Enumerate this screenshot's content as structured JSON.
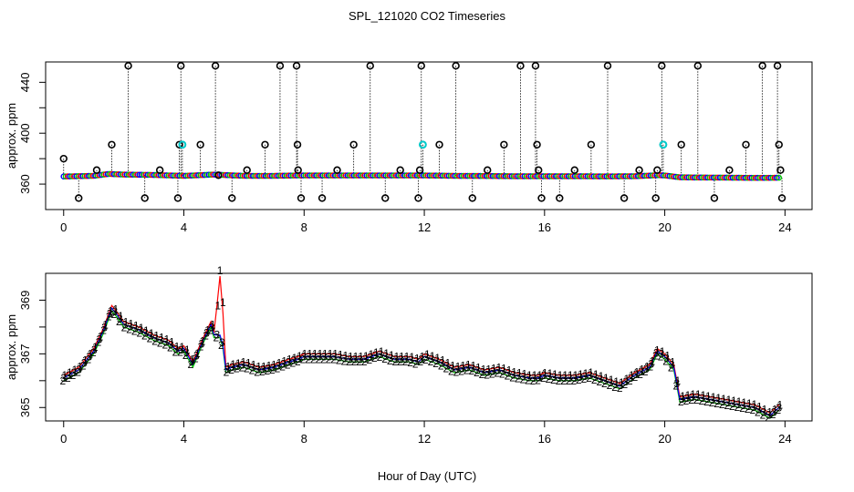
{
  "chart_data": {
    "title": "SPL_121020  CO2 Timeseries",
    "type": "scatter",
    "panels": [
      {
        "name": "top",
        "ylabel": "approx. ppm",
        "xlim": [
          -0.6,
          24.9
        ],
        "ylim": [
          340,
          456
        ],
        "yticks": [
          360,
          400,
          440
        ],
        "xticks": [
          0,
          4,
          8,
          12,
          16,
          20,
          24
        ],
        "xticklabels": [
          "0",
          "4",
          "8",
          "12",
          "16",
          "20",
          "24"
        ],
        "yticklabels": [
          "360",
          "400",
          "440"
        ],
        "baseline_series": [
          {
            "name": "3",
            "color": "#0000ff"
          },
          {
            "name": "2",
            "color": "#00cc00"
          },
          {
            "name": "1",
            "color": "#ff0000"
          }
        ],
        "highlight_color": "#00cccc",
        "outliers": [
          {
            "x": 0.0,
            "y": 380
          },
          {
            "x": 0.5,
            "y": 349
          },
          {
            "x": 1.1,
            "y": 371
          },
          {
            "x": 1.6,
            "y": 391
          },
          {
            "x": 2.15,
            "y": 453
          },
          {
            "x": 2.7,
            "y": 349
          },
          {
            "x": 3.2,
            "y": 371
          },
          {
            "x": 3.8,
            "y": 349
          },
          {
            "x": 3.85,
            "y": 391
          },
          {
            "x": 3.9,
            "y": 453
          },
          {
            "x": 3.95,
            "y": 391
          },
          {
            "x": 4.55,
            "y": 391
          },
          {
            "x": 5.05,
            "y": 453
          },
          {
            "x": 5.15,
            "y": 367
          },
          {
            "x": 5.6,
            "y": 349
          },
          {
            "x": 6.1,
            "y": 371
          },
          {
            "x": 6.7,
            "y": 391
          },
          {
            "x": 7.2,
            "y": 453
          },
          {
            "x": 7.75,
            "y": 453
          },
          {
            "x": 7.78,
            "y": 391
          },
          {
            "x": 7.8,
            "y": 371
          },
          {
            "x": 7.9,
            "y": 349
          },
          {
            "x": 8.6,
            "y": 349
          },
          {
            "x": 9.1,
            "y": 371
          },
          {
            "x": 9.65,
            "y": 391
          },
          {
            "x": 10.2,
            "y": 453
          },
          {
            "x": 10.7,
            "y": 349
          },
          {
            "x": 11.2,
            "y": 371
          },
          {
            "x": 11.8,
            "y": 349
          },
          {
            "x": 11.85,
            "y": 371
          },
          {
            "x": 11.9,
            "y": 453
          },
          {
            "x": 11.95,
            "y": 391
          },
          {
            "x": 12.5,
            "y": 391
          },
          {
            "x": 13.05,
            "y": 453
          },
          {
            "x": 13.6,
            "y": 349
          },
          {
            "x": 14.1,
            "y": 371
          },
          {
            "x": 14.65,
            "y": 391
          },
          {
            "x": 15.2,
            "y": 453
          },
          {
            "x": 15.7,
            "y": 453
          },
          {
            "x": 15.75,
            "y": 391
          },
          {
            "x": 15.8,
            "y": 371
          },
          {
            "x": 15.9,
            "y": 349
          },
          {
            "x": 16.5,
            "y": 349
          },
          {
            "x": 17.0,
            "y": 371
          },
          {
            "x": 17.55,
            "y": 391
          },
          {
            "x": 18.1,
            "y": 453
          },
          {
            "x": 18.65,
            "y": 349
          },
          {
            "x": 19.15,
            "y": 371
          },
          {
            "x": 19.7,
            "y": 349
          },
          {
            "x": 19.75,
            "y": 371
          },
          {
            "x": 19.9,
            "y": 453
          },
          {
            "x": 19.95,
            "y": 391
          },
          {
            "x": 20.55,
            "y": 391
          },
          {
            "x": 21.1,
            "y": 453
          },
          {
            "x": 21.65,
            "y": 349
          },
          {
            "x": 22.15,
            "y": 371
          },
          {
            "x": 22.7,
            "y": 391
          },
          {
            "x": 23.25,
            "y": 453
          },
          {
            "x": 23.75,
            "y": 453
          },
          {
            "x": 23.8,
            "y": 391
          },
          {
            "x": 23.85,
            "y": 371
          },
          {
            "x": 23.9,
            "y": 349
          }
        ],
        "highlights": [
          {
            "x": 3.95,
            "y": 391
          },
          {
            "x": 11.95,
            "y": 391
          },
          {
            "x": 19.95,
            "y": 391
          }
        ]
      },
      {
        "name": "bottom",
        "ylabel": "approx. ppm",
        "xlabel": "Hour of Day (UTC)",
        "xlim": [
          -0.6,
          24.9
        ],
        "ylim": [
          364.5,
          370.0
        ],
        "yticks": [
          365,
          367,
          369
        ],
        "xticks": [
          0,
          4,
          8,
          12,
          16,
          20,
          24
        ],
        "xticklabels": [
          "0",
          "4",
          "8",
          "12",
          "16",
          "20",
          "24"
        ],
        "yticklabels": [
          "365",
          "367",
          "369"
        ],
        "series": [
          {
            "name": "1",
            "label": "1",
            "color": "#ff0000",
            "offset": 0.1,
            "x": [
              0.0,
              0.5,
              1.0,
              1.3,
              1.6,
              1.75,
              2.0,
              2.5,
              3.0,
              3.5,
              3.8,
              4.0,
              4.3,
              4.6,
              4.9,
              5.0,
              5.1,
              5.2,
              5.3,
              5.4,
              5.6,
              6.0,
              6.5,
              7.0,
              7.5,
              7.8,
              8.0,
              8.5,
              9.0,
              9.5,
              10.0,
              10.5,
              11.0,
              11.5,
              11.8,
              12.0,
              12.5,
              13.0,
              13.5,
              14.0,
              14.5,
              15.0,
              15.5,
              15.8,
              16.0,
              16.5,
              17.0,
              17.5,
              18.0,
              18.5,
              19.0,
              19.5,
              19.75,
              20.0,
              20.3,
              20.5,
              21.0,
              21.5,
              22.0,
              22.5,
              23.0,
              23.5,
              23.8
            ],
            "y": [
              366.2,
              366.5,
              367.2,
              367.9,
              368.8,
              368.6,
              368.2,
              368.0,
              367.7,
              367.5,
              367.2,
              367.3,
              366.7,
              367.5,
              368.2,
              367.8,
              368.8,
              369.9,
              368.5,
              366.5,
              366.6,
              366.7,
              366.5,
              366.6,
              366.8,
              366.9,
              367.0,
              367.0,
              367.0,
              366.9,
              366.9,
              367.1,
              366.9,
              366.9,
              366.8,
              367.0,
              366.8,
              366.5,
              366.6,
              366.4,
              366.5,
              366.3,
              366.2,
              366.2,
              366.3,
              366.2,
              366.2,
              366.3,
              366.1,
              365.9,
              366.3,
              366.6,
              367.2,
              367.0,
              366.6,
              365.4,
              365.5,
              365.4,
              365.3,
              365.2,
              365.1,
              364.8,
              365.1
            ]
          },
          {
            "name": "2",
            "label": "2",
            "color": "#00cc00",
            "offset": -0.1,
            "x": [
              0.0,
              0.5,
              1.0,
              1.3,
              1.6,
              1.75,
              2.0,
              2.5,
              3.0,
              3.5,
              3.8,
              4.0,
              4.3,
              4.6,
              4.9,
              5.0,
              5.1,
              5.2,
              5.3,
              5.4,
              5.6,
              6.0,
              6.5,
              7.0,
              7.5,
              7.8,
              8.0,
              8.5,
              9.0,
              9.5,
              10.0,
              10.5,
              11.0,
              11.5,
              11.8,
              12.0,
              12.5,
              13.0,
              13.5,
              14.0,
              14.5,
              15.0,
              15.5,
              15.8,
              16.0,
              16.5,
              17.0,
              17.5,
              18.0,
              18.5,
              19.0,
              19.5,
              19.75,
              20.0,
              20.3,
              20.5,
              21.0,
              21.5,
              22.0,
              22.5,
              23.0,
              23.5,
              23.8
            ],
            "y": [
              366.0,
              366.3,
              367.0,
              367.7,
              368.6,
              368.4,
              368.0,
              367.8,
              367.5,
              367.3,
              367.0,
              367.1,
              366.5,
              367.3,
              368.0,
              367.6,
              367.6,
              367.6,
              367.2,
              366.3,
              366.4,
              366.5,
              366.3,
              366.4,
              366.6,
              366.7,
              366.8,
              366.8,
              366.8,
              366.7,
              366.7,
              366.9,
              366.7,
              366.7,
              366.6,
              366.8,
              366.6,
              366.3,
              366.4,
              366.2,
              366.3,
              366.1,
              366.0,
              366.0,
              366.1,
              366.0,
              366.0,
              366.1,
              365.9,
              365.7,
              366.1,
              366.4,
              367.0,
              366.8,
              366.4,
              365.2,
              365.3,
              365.2,
              365.1,
              365.0,
              364.9,
              364.6,
              364.9
            ]
          },
          {
            "name": "3",
            "label": "3",
            "color": "#0000ff",
            "offset": 0.0,
            "x": [
              0.0,
              0.5,
              1.0,
              1.3,
              1.6,
              1.75,
              2.0,
              2.5,
              3.0,
              3.5,
              3.8,
              4.0,
              4.3,
              4.6,
              4.9,
              5.0,
              5.1,
              5.2,
              5.3,
              5.4,
              5.6,
              6.0,
              6.5,
              7.0,
              7.5,
              7.8,
              8.0,
              8.5,
              9.0,
              9.5,
              10.0,
              10.5,
              11.0,
              11.5,
              11.8,
              12.0,
              12.5,
              13.0,
              13.5,
              14.0,
              14.5,
              15.0,
              15.5,
              15.8,
              16.0,
              16.5,
              17.0,
              17.5,
              18.0,
              18.5,
              19.0,
              19.5,
              19.75,
              20.0,
              20.3,
              20.5,
              21.0,
              21.5,
              22.0,
              22.5,
              23.0,
              23.5,
              23.8
            ],
            "y": [
              366.1,
              366.4,
              367.1,
              367.8,
              368.7,
              368.5,
              368.1,
              367.9,
              367.6,
              367.4,
              367.1,
              367.2,
              366.6,
              367.4,
              368.1,
              367.7,
              367.7,
              367.7,
              367.3,
              366.4,
              366.5,
              366.6,
              366.4,
              366.5,
              366.7,
              366.8,
              366.9,
              366.9,
              366.9,
              366.8,
              366.8,
              367.0,
              366.8,
              366.8,
              366.7,
              366.9,
              366.7,
              366.4,
              366.5,
              366.3,
              366.4,
              366.2,
              366.1,
              366.1,
              366.2,
              366.1,
              366.1,
              366.2,
              366.0,
              365.8,
              366.2,
              366.5,
              367.1,
              366.9,
              366.5,
              365.3,
              365.4,
              365.3,
              365.2,
              365.1,
              365.0,
              364.7,
              365.0
            ]
          }
        ]
      }
    ],
    "top_baseline": {
      "x": [
        0.0,
        1.0,
        1.5,
        2.0,
        3.0,
        4.0,
        5.0,
        6.0,
        7.0,
        7.8,
        8.0,
        9.0,
        10.0,
        11.0,
        12.0,
        13.0,
        14.0,
        15.0,
        15.8,
        16.0,
        17.0,
        18.0,
        19.0,
        19.8,
        20.0,
        20.5,
        21.0,
        22.0,
        23.0,
        23.8
      ],
      "y": [
        366,
        366.5,
        368,
        367.5,
        367.2,
        366.5,
        367.5,
        366.5,
        366.5,
        366.8,
        366.8,
        366.8,
        366.8,
        366.8,
        366.8,
        366.5,
        366.4,
        366.2,
        366.2,
        366.2,
        366.2,
        366.1,
        366.2,
        367.0,
        366.8,
        365.4,
        365.2,
        365.1,
        364.9,
        365.0
      ]
    }
  }
}
